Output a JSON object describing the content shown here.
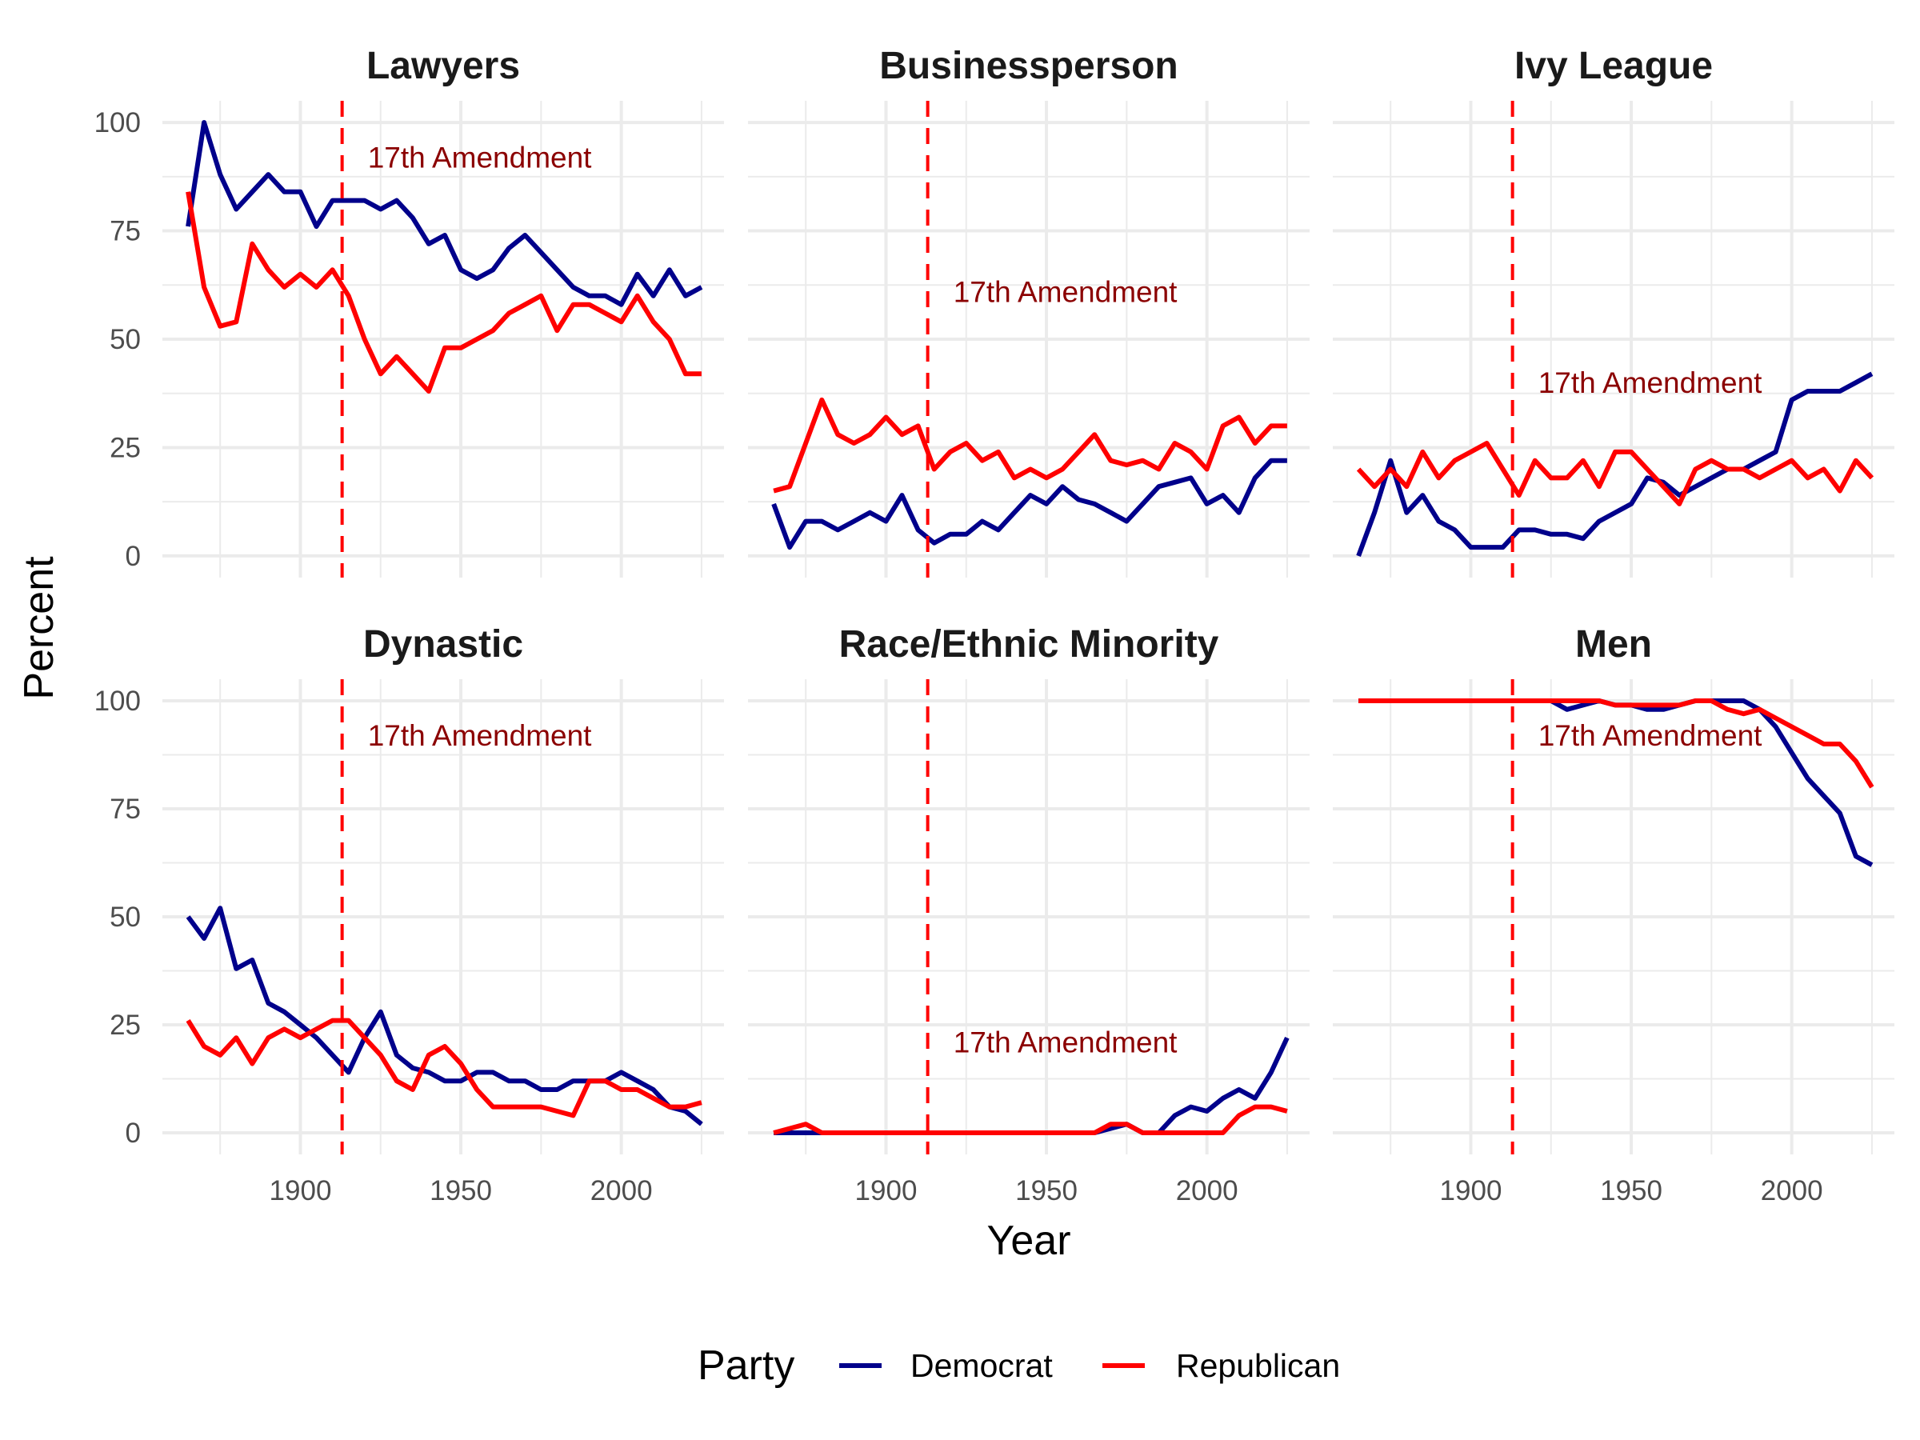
{
  "chart_data": {
    "type": "line",
    "layout": "facet grid, 2 rows x 3 columns, shared axes",
    "xlabel": "Year",
    "ylabel": "Percent",
    "xlim": [
      1857,
      2032
    ],
    "ylim": [
      -5,
      105
    ],
    "x_ticks": [
      1900,
      1950,
      2000
    ],
    "y_ticks": [
      0,
      25,
      50,
      75,
      100
    ],
    "grid": true,
    "legend": {
      "title": "Party",
      "position": "bottom",
      "entries": [
        "Democrat",
        "Republican"
      ]
    },
    "colors": {
      "Democrat": "#00008B",
      "Republican": "#FF0000",
      "annotation": "#8B0000",
      "vline": "#FF0000"
    },
    "vline": {
      "x": 1913,
      "style": "dashed",
      "label": "17th Amendment"
    },
    "x": [
      1865,
      1870,
      1875,
      1880,
      1885,
      1890,
      1895,
      1900,
      1905,
      1910,
      1915,
      1920,
      1925,
      1930,
      1935,
      1940,
      1945,
      1950,
      1955,
      1960,
      1965,
      1970,
      1975,
      1980,
      1985,
      1990,
      1995,
      2000,
      2005,
      2010,
      2015,
      2020,
      2025
    ],
    "panels": [
      {
        "title": "Lawyers",
        "annotation_y": 92,
        "series": [
          {
            "name": "Democrat",
            "values": [
              76,
              100,
              88,
              80,
              84,
              88,
              84,
              84,
              76,
              82,
              82,
              82,
              80,
              82,
              78,
              72,
              74,
              66,
              64,
              66,
              71,
              74,
              70,
              66,
              62,
              60,
              60,
              58,
              65,
              60,
              66,
              60,
              62
            ]
          },
          {
            "name": "Republican",
            "values": [
              84,
              62,
              53,
              54,
              72,
              66,
              62,
              65,
              62,
              66,
              60,
              50,
              42,
              46,
              42,
              38,
              48,
              48,
              50,
              52,
              56,
              58,
              60,
              52,
              58,
              58,
              56,
              54,
              60,
              54,
              50,
              42,
              42
            ]
          }
        ]
      },
      {
        "title": "Businessperson",
        "annotation_y": 61,
        "series": [
          {
            "name": "Democrat",
            "values": [
              12,
              2,
              8,
              8,
              6,
              8,
              10,
              8,
              14,
              6,
              3,
              5,
              5,
              8,
              6,
              10,
              14,
              12,
              16,
              13,
              12,
              10,
              8,
              12,
              16,
              17,
              18,
              12,
              14,
              10,
              18,
              22,
              22
            ]
          },
          {
            "name": "Republican",
            "values": [
              15,
              16,
              26,
              36,
              28,
              26,
              28,
              32,
              28,
              30,
              20,
              24,
              26,
              22,
              24,
              18,
              20,
              18,
              20,
              24,
              28,
              22,
              21,
              22,
              20,
              26,
              24,
              20,
              30,
              32,
              26,
              30,
              30
            ]
          }
        ]
      },
      {
        "title": "Ivy League",
        "annotation_y": 40,
        "series": [
          {
            "name": "Democrat",
            "values": [
              0,
              10,
              22,
              10,
              14,
              8,
              6,
              2,
              2,
              2,
              6,
              6,
              5,
              5,
              4,
              8,
              10,
              12,
              18,
              17,
              14,
              16,
              18,
              20,
              20,
              22,
              24,
              36,
              38,
              38,
              38,
              40,
              42
            ]
          },
          {
            "name": "Republican",
            "values": [
              20,
              16,
              20,
              16,
              24,
              18,
              22,
              24,
              26,
              20,
              14,
              22,
              18,
              18,
              22,
              16,
              24,
              24,
              20,
              16,
              12,
              20,
              22,
              20,
              20,
              18,
              20,
              22,
              18,
              20,
              15,
              22,
              18
            ]
          }
        ]
      },
      {
        "title": "Dynastic",
        "annotation_y": 92,
        "series": [
          {
            "name": "Democrat",
            "values": [
              50,
              45,
              52,
              38,
              40,
              30,
              28,
              25,
              22,
              18,
              14,
              22,
              28,
              18,
              15,
              14,
              12,
              12,
              14,
              14,
              12,
              12,
              10,
              10,
              12,
              12,
              12,
              14,
              12,
              10,
              6,
              5,
              2
            ]
          },
          {
            "name": "Republican",
            "values": [
              26,
              20,
              18,
              22,
              16,
              22,
              24,
              22,
              24,
              26,
              26,
              22,
              18,
              12,
              10,
              18,
              20,
              16,
              10,
              6,
              6,
              6,
              6,
              5,
              4,
              12,
              12,
              10,
              10,
              8,
              6,
              6,
              7
            ]
          }
        ]
      },
      {
        "title": "Race/Ethnic Minority",
        "annotation_y": 21,
        "series": [
          {
            "name": "Democrat",
            "values": [
              0,
              0,
              0,
              0,
              0,
              0,
              0,
              0,
              0,
              0,
              0,
              0,
              0,
              0,
              0,
              0,
              0,
              0,
              0,
              0,
              0,
              1,
              2,
              0,
              0,
              4,
              6,
              5,
              8,
              10,
              8,
              14,
              22
            ]
          },
          {
            "name": "Republican",
            "values": [
              0,
              1,
              2,
              0,
              0,
              0,
              0,
              0,
              0,
              0,
              0,
              0,
              0,
              0,
              0,
              0,
              0,
              0,
              0,
              0,
              0,
              2,
              2,
              0,
              0,
              0,
              0,
              0,
              0,
              4,
              6,
              6,
              5
            ]
          }
        ]
      },
      {
        "title": "Men",
        "annotation_y": 92,
        "series": [
          {
            "name": "Democrat",
            "values": [
              100,
              100,
              100,
              100,
              100,
              100,
              100,
              100,
              100,
              100,
              100,
              100,
              100,
              98,
              99,
              100,
              99,
              99,
              98,
              98,
              99,
              100,
              100,
              100,
              100,
              98,
              94,
              88,
              82,
              78,
              74,
              64,
              62
            ]
          },
          {
            "name": "Republican",
            "values": [
              100,
              100,
              100,
              100,
              100,
              100,
              100,
              100,
              100,
              100,
              100,
              100,
              100,
              100,
              100,
              100,
              99,
              99,
              99,
              99,
              99,
              100,
              100,
              98,
              97,
              98,
              96,
              94,
              92,
              90,
              90,
              86,
              80
            ]
          }
        ]
      }
    ]
  }
}
